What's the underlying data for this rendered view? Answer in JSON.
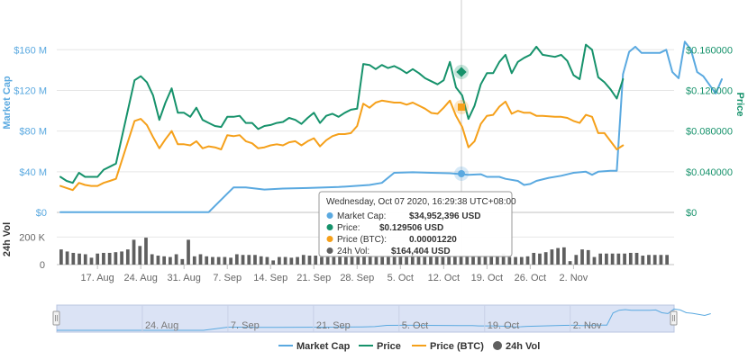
{
  "chart_data": {
    "type": "line",
    "title": "",
    "x_start": "2020-08-11",
    "x_ticks": [
      "17. Aug",
      "24. Aug",
      "31. Aug",
      "7. Sep",
      "14. Sep",
      "21. Sep",
      "28. Sep",
      "5. Oct",
      "12. Oct",
      "19. Oct",
      "26. Oct",
      "2. Nov"
    ],
    "navigator_ticks": [
      "24. Aug",
      "7. Sep",
      "21. Sep",
      "5. Oct",
      "19. Oct",
      "2. Nov"
    ],
    "axes": {
      "market_cap": {
        "label": "Market Cap",
        "ticks": [
          "$0",
          "$40 M",
          "$80 M",
          "$120 M",
          "$160 M"
        ],
        "range": [
          0,
          170000000
        ]
      },
      "price": {
        "label": "Price",
        "ticks": [
          "$0",
          "$0.040000",
          "$0.080000",
          "$0.120000",
          "$0.160000"
        ],
        "range": [
          0,
          0.17
        ]
      },
      "volume": {
        "label": "24h Vol",
        "ticks": [
          "0",
          "200 K"
        ],
        "range": [
          0,
          300000
        ]
      }
    },
    "colors": {
      "market_cap": "#5aa9e0",
      "price": "#16926b",
      "price_btc": "#f5a01a",
      "volume": "#5f5f5f",
      "navigator_fill": "#dbe3f5"
    },
    "grid": true,
    "legend_position": "bottom",
    "legend": [
      {
        "key": "market_cap",
        "label": "Market Cap",
        "symbol": "line"
      },
      {
        "key": "price",
        "label": "Price",
        "symbol": "line"
      },
      {
        "key": "price_btc",
        "label": "Price (BTC)",
        "symbol": "line"
      },
      {
        "key": "volume",
        "label": "24h Vol",
        "symbol": "dot"
      }
    ],
    "series": {
      "market_cap": [
        [
          0,
          0.3
        ],
        [
          8,
          0.3
        ],
        [
          16,
          0.3
        ],
        [
          24,
          0.3
        ],
        [
          28,
          24.5
        ],
        [
          30,
          24.5
        ],
        [
          33,
          22.5
        ],
        [
          36,
          23.5
        ],
        [
          40,
          24
        ],
        [
          45,
          25
        ],
        [
          50,
          27
        ],
        [
          52,
          29
        ],
        [
          54,
          39
        ],
        [
          57,
          39.5
        ],
        [
          60,
          39
        ],
        [
          63,
          38.5
        ],
        [
          66,
          37
        ],
        [
          68,
          37.5
        ],
        [
          69,
          35
        ],
        [
          71,
          35
        ],
        [
          72,
          33
        ],
        [
          74,
          31
        ],
        [
          75,
          27
        ],
        [
          76,
          28
        ],
        [
          77,
          31
        ],
        [
          79,
          34
        ],
        [
          81,
          36
        ],
        [
          83,
          39
        ],
        [
          85,
          40
        ],
        [
          86,
          37
        ],
        [
          87,
          40
        ],
        [
          89,
          41
        ],
        [
          90,
          41
        ],
        [
          91,
          136
        ],
        [
          92,
          158
        ],
        [
          93,
          163
        ],
        [
          94,
          157
        ],
        [
          97,
          157
        ],
        [
          98,
          160
        ],
        [
          99,
          138
        ],
        [
          100,
          132
        ],
        [
          101,
          168
        ],
        [
          102,
          160
        ],
        [
          103,
          138
        ],
        [
          104,
          134
        ],
        [
          106,
          117
        ],
        [
          107,
          131
        ]
      ],
      "price": [
        [
          0,
          0.035
        ],
        [
          1,
          0.031
        ],
        [
          2,
          0.029
        ],
        [
          3,
          0.039
        ],
        [
          4,
          0.035
        ],
        [
          5,
          0.035
        ],
        [
          6,
          0.035
        ],
        [
          7,
          0.042
        ],
        [
          8,
          0.045
        ],
        [
          9,
          0.048
        ],
        [
          12,
          0.13
        ],
        [
          13,
          0.134
        ],
        [
          14,
          0.128
        ],
        [
          15,
          0.115
        ],
        [
          16,
          0.091
        ],
        [
          17,
          0.108
        ],
        [
          18,
          0.122
        ],
        [
          19,
          0.098
        ],
        [
          20,
          0.098
        ],
        [
          21,
          0.094
        ],
        [
          22,
          0.103
        ],
        [
          23,
          0.091
        ],
        [
          24,
          0.088
        ],
        [
          25,
          0.085
        ],
        [
          26,
          0.084
        ],
        [
          27,
          0.094
        ],
        [
          28,
          0.094
        ],
        [
          29,
          0.095
        ],
        [
          30,
          0.088
        ],
        [
          31,
          0.088
        ],
        [
          32,
          0.082
        ],
        [
          33,
          0.085
        ],
        [
          34,
          0.086
        ],
        [
          35,
          0.088
        ],
        [
          36,
          0.089
        ],
        [
          37,
          0.093
        ],
        [
          38,
          0.091
        ],
        [
          39,
          0.087
        ],
        [
          40,
          0.093
        ],
        [
          41,
          0.098
        ],
        [
          42,
          0.088
        ],
        [
          43,
          0.095
        ],
        [
          44,
          0.097
        ],
        [
          45,
          0.094
        ],
        [
          46,
          0.098
        ],
        [
          47,
          0.101
        ],
        [
          48,
          0.102
        ],
        [
          49,
          0.146
        ],
        [
          50,
          0.145
        ],
        [
          51,
          0.141
        ],
        [
          52,
          0.145
        ],
        [
          53,
          0.142
        ],
        [
          54,
          0.144
        ],
        [
          55,
          0.141
        ],
        [
          56,
          0.137
        ],
        [
          57,
          0.141
        ],
        [
          58,
          0.137
        ],
        [
          59,
          0.132
        ],
        [
          60,
          0.129
        ],
        [
          61,
          0.126
        ],
        [
          62,
          0.13
        ],
        [
          63,
          0.148
        ],
        [
          64,
          0.123
        ],
        [
          65,
          0.115
        ],
        [
          66,
          0.092
        ],
        [
          67,
          0.105
        ],
        [
          68,
          0.126
        ],
        [
          69,
          0.137
        ],
        [
          70,
          0.137
        ],
        [
          71,
          0.148
        ],
        [
          72,
          0.155
        ],
        [
          73,
          0.137
        ],
        [
          74,
          0.148
        ],
        [
          75,
          0.152
        ],
        [
          76,
          0.155
        ],
        [
          77,
          0.163
        ],
        [
          78,
          0.155
        ],
        [
          80,
          0.153
        ],
        [
          81,
          0.155
        ],
        [
          82,
          0.149
        ],
        [
          83,
          0.135
        ],
        [
          84,
          0.131
        ],
        [
          85,
          0.165
        ],
        [
          86,
          0.16
        ],
        [
          87,
          0.133
        ],
        [
          88,
          0.128
        ],
        [
          89,
          0.121
        ],
        [
          90,
          0.112
        ],
        [
          91,
          0.131
        ]
      ],
      "price_btc": [
        [
          0,
          0.026
        ],
        [
          1,
          0.024
        ],
        [
          2,
          0.022
        ],
        [
          3,
          0.029
        ],
        [
          4,
          0.027
        ],
        [
          5,
          0.026
        ],
        [
          6,
          0.026
        ],
        [
          7,
          0.029
        ],
        [
          8,
          0.031
        ],
        [
          9,
          0.033
        ],
        [
          12,
          0.09
        ],
        [
          13,
          0.092
        ],
        [
          14,
          0.086
        ],
        [
          15,
          0.074
        ],
        [
          16,
          0.063
        ],
        [
          17,
          0.072
        ],
        [
          18,
          0.08
        ],
        [
          19,
          0.067
        ],
        [
          20,
          0.067
        ],
        [
          21,
          0.066
        ],
        [
          22,
          0.07
        ],
        [
          23,
          0.063
        ],
        [
          24,
          0.065
        ],
        [
          25,
          0.064
        ],
        [
          26,
          0.062
        ],
        [
          27,
          0.076
        ],
        [
          28,
          0.075
        ],
        [
          29,
          0.076
        ],
        [
          30,
          0.07
        ],
        [
          31,
          0.068
        ],
        [
          32,
          0.063
        ],
        [
          33,
          0.064
        ],
        [
          34,
          0.066
        ],
        [
          35,
          0.067
        ],
        [
          36,
          0.066
        ],
        [
          37,
          0.069
        ],
        [
          38,
          0.07
        ],
        [
          39,
          0.066
        ],
        [
          40,
          0.07
        ],
        [
          41,
          0.073
        ],
        [
          42,
          0.065
        ],
        [
          43,
          0.071
        ],
        [
          44,
          0.075
        ],
        [
          45,
          0.077
        ],
        [
          46,
          0.077
        ],
        [
          47,
          0.078
        ],
        [
          48,
          0.085
        ],
        [
          49,
          0.107
        ],
        [
          50,
          0.103
        ],
        [
          51,
          0.108
        ],
        [
          52,
          0.11
        ],
        [
          53,
          0.109
        ],
        [
          54,
          0.108
        ],
        [
          55,
          0.108
        ],
        [
          56,
          0.106
        ],
        [
          57,
          0.108
        ],
        [
          58,
          0.105
        ],
        [
          59,
          0.102
        ],
        [
          60,
          0.0978
        ],
        [
          61,
          0.097
        ],
        [
          62,
          0.103
        ],
        [
          63,
          0.11
        ],
        [
          64,
          0.095
        ],
        [
          65,
          0.084
        ],
        [
          66,
          0.064
        ],
        [
          67,
          0.07
        ],
        [
          68,
          0.087
        ],
        [
          69,
          0.095
        ],
        [
          70,
          0.096
        ],
        [
          71,
          0.104
        ],
        [
          72,
          0.109
        ],
        [
          73,
          0.097
        ],
        [
          74,
          0.1
        ],
        [
          75,
          0.098
        ],
        [
          76,
          0.098
        ],
        [
          77,
          0.095
        ],
        [
          78,
          0.095
        ],
        [
          80,
          0.094
        ],
        [
          81,
          0.094
        ],
        [
          82,
          0.093
        ],
        [
          83,
          0.09
        ],
        [
          84,
          0.088
        ],
        [
          85,
          0.096
        ],
        [
          86,
          0.094
        ],
        [
          87,
          0.078
        ],
        [
          88,
          0.078
        ],
        [
          89,
          0.07
        ],
        [
          90,
          0.062
        ],
        [
          91,
          0.066
        ]
      ]
    },
    "volume": [
      110,
      95,
      85,
      80,
      75,
      50,
      80,
      85,
      85,
      90,
      95,
      110,
      180,
      135,
      195,
      75,
      65,
      60,
      55,
      75,
      40,
      180,
      60,
      75,
      60,
      55,
      55,
      55,
      50,
      75,
      70,
      70,
      70,
      60,
      55,
      30,
      55,
      55,
      50,
      55,
      70,
      65,
      65,
      55,
      55,
      55,
      60,
      55,
      85,
      70,
      65,
      65,
      55,
      55,
      55,
      55,
      60,
      55,
      75,
      60,
      55,
      60,
      60,
      55,
      70,
      60,
      60,
      60,
      60,
      60,
      60,
      60,
      60,
      80,
      55,
      55,
      55,
      60,
      85,
      80,
      90,
      110,
      120,
      125,
      25,
      70,
      110,
      105,
      55,
      80,
      80,
      80,
      80,
      80,
      85,
      85,
      65,
      70,
      70,
      70,
      70
    ],
    "tooltip": {
      "header": "Wednesday, Oct 07 2020, 16:29:38 UTC+08:00",
      "rows": [
        {
          "key": "market_cap",
          "label": "Market Cap:",
          "value": "$34,952,396 USD"
        },
        {
          "key": "price",
          "label": "Price:",
          "value": "$0.129506 USD"
        },
        {
          "key": "price_btc",
          "label": "Price (BTC):",
          "value": "0.00001220"
        },
        {
          "key": "volume",
          "label": "24h Vol:",
          "value": "$164,404 USD"
        }
      ]
    }
  }
}
